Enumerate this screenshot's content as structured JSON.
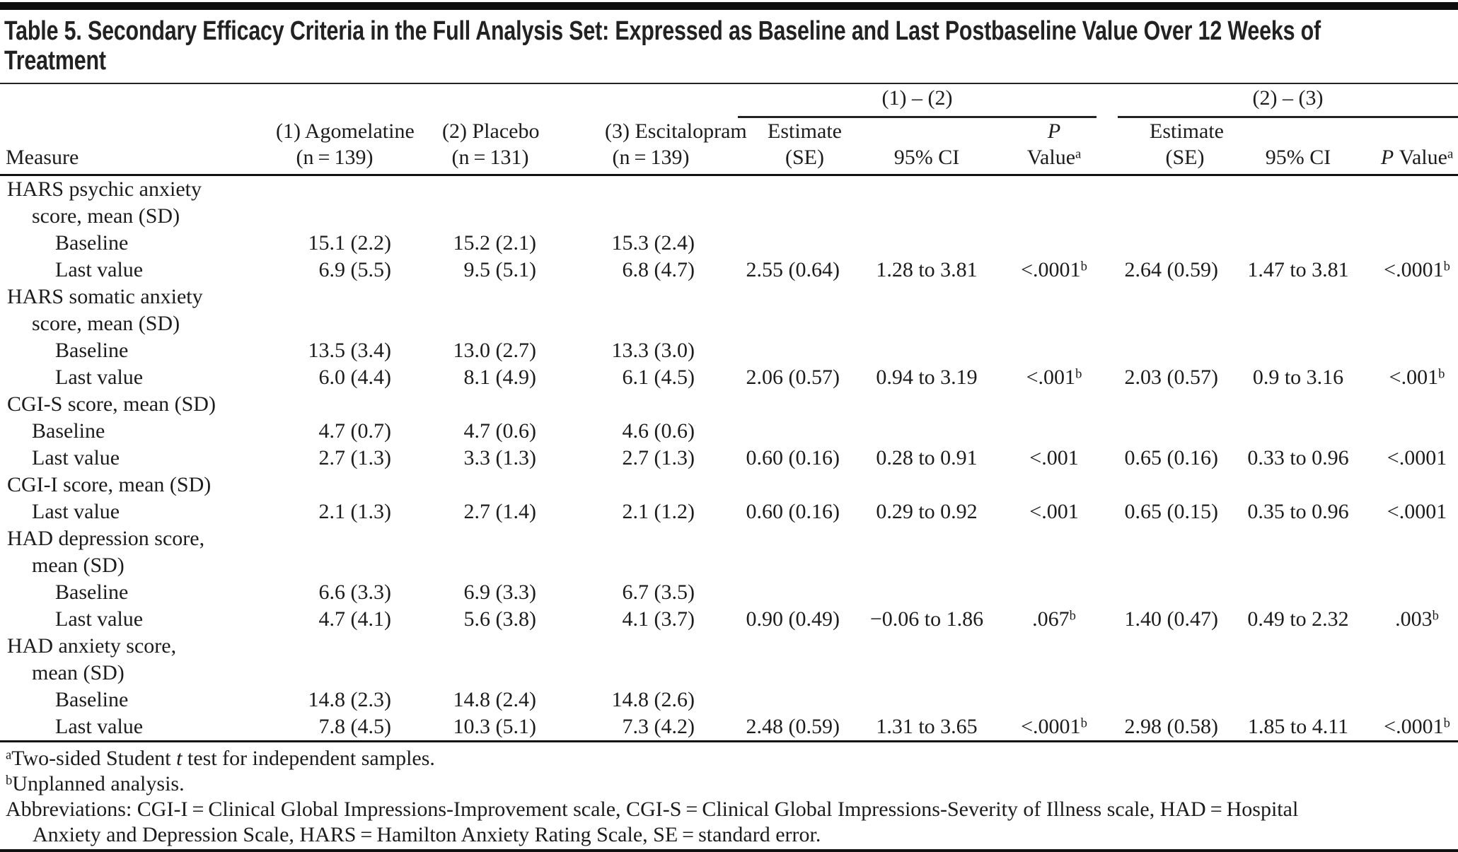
{
  "colors": {
    "background": "#ffffff",
    "text": "#1c1c1c",
    "rule": "#111111",
    "top_bar": "#0e0e0e"
  },
  "title": {
    "line1": "Table 5. Secondary Efficacy Criteria in the Full Analysis Set: Expressed as Baseline and Last Postbaseline Value Over 12 Weeks of",
    "line2": "Treatment"
  },
  "header": {
    "measure": "Measure",
    "treatments": [
      {
        "line1": "(1) Agomelatine",
        "line2": "(n = 139)"
      },
      {
        "line1": "(2) Placebo",
        "line2": "(n = 131)"
      },
      {
        "line1": "(3) Escitalopram",
        "line2": "(n = 139)"
      }
    ],
    "spanners": [
      {
        "label": "(1) – (2)"
      },
      {
        "label": "(2) – (3)"
      }
    ],
    "cols": {
      "estimate_l1": "Estimate",
      "estimate_l2": "(SE)",
      "ci": "95% CI",
      "p1_l1": "P",
      "p1_l2": "Value",
      "p2_italic": "P",
      "p2_rest": " Value",
      "p_sup": "a"
    }
  },
  "rows": [
    {
      "label": "HARS psychic anxiety",
      "indent": 0,
      "cells": []
    },
    {
      "label": "score, mean (SD)",
      "indent": 1,
      "cells": []
    },
    {
      "label": "Baseline",
      "indent": 2,
      "cells": [
        "15.1 (2.2)",
        "15.2 (2.1)",
        "15.3 (2.4)",
        "",
        "",
        "",
        "",
        "",
        ""
      ]
    },
    {
      "label": "Last value",
      "indent": 2,
      "cells": [
        "6.9 (5.5)",
        "9.5 (5.1)",
        "6.8 (4.7)",
        "2.55 (0.64)",
        "1.28 to 3.81",
        "<.0001^b",
        "2.64 (0.59)",
        "1.47 to 3.81",
        "<.0001^b"
      ]
    },
    {
      "label": "HARS somatic anxiety",
      "indent": 0,
      "cells": []
    },
    {
      "label": "score, mean (SD)",
      "indent": 1,
      "cells": []
    },
    {
      "label": "Baseline",
      "indent": 2,
      "cells": [
        "13.5 (3.4)",
        "13.0 (2.7)",
        "13.3 (3.0)",
        "",
        "",
        "",
        "",
        "",
        ""
      ]
    },
    {
      "label": "Last value",
      "indent": 2,
      "cells": [
        "6.0 (4.4)",
        "8.1 (4.9)",
        "6.1 (4.5)",
        "2.06 (0.57)",
        "0.94 to 3.19",
        "<.001^b",
        "2.03 (0.57)",
        "0.9 to 3.16",
        "<.001^b"
      ]
    },
    {
      "label": "CGI-S score, mean (SD)",
      "indent": 0,
      "cells": []
    },
    {
      "label": "Baseline",
      "indent": 1,
      "cells": [
        "4.7 (0.7)",
        "4.7 (0.6)",
        "4.6 (0.6)",
        "",
        "",
        "",
        "",
        "",
        ""
      ]
    },
    {
      "label": "Last value",
      "indent": 1,
      "cells": [
        "2.7 (1.3)",
        "3.3 (1.3)",
        "2.7 (1.3)",
        "0.60 (0.16)",
        "0.28 to 0.91",
        "<.001",
        "0.65 (0.16)",
        "0.33 to 0.96",
        "<.0001"
      ]
    },
    {
      "label": "CGI-I score, mean (SD)",
      "indent": 0,
      "cells": []
    },
    {
      "label": "Last value",
      "indent": 1,
      "cells": [
        "2.1 (1.3)",
        "2.7 (1.4)",
        "2.1 (1.2)",
        "0.60 (0.16)",
        "0.29 to 0.92",
        "<.001",
        "0.65 (0.15)",
        "0.35 to 0.96",
        "<.0001"
      ]
    },
    {
      "label": "HAD depression score,",
      "indent": 0,
      "cells": []
    },
    {
      "label": "mean (SD)",
      "indent": 1,
      "cells": []
    },
    {
      "label": "Baseline",
      "indent": 2,
      "cells": [
        "6.6 (3.3)",
        "6.9 (3.3)",
        "6.7 (3.5)",
        "",
        "",
        "",
        "",
        "",
        ""
      ]
    },
    {
      "label": "Last value",
      "indent": 2,
      "cells": [
        "4.7 (4.1)",
        "5.6 (3.8)",
        "4.1 (3.7)",
        "0.90 (0.49)",
        "−0.06 to 1.86",
        ".067^b",
        "1.40 (0.47)",
        "0.49 to 2.32",
        ".003^b"
      ]
    },
    {
      "label": "HAD anxiety score,",
      "indent": 0,
      "cells": []
    },
    {
      "label": "mean (SD)",
      "indent": 1,
      "cells": []
    },
    {
      "label": "Baseline",
      "indent": 2,
      "cells": [
        "14.8 (2.3)",
        "14.8 (2.4)",
        "14.8 (2.6)",
        "",
        "",
        "",
        "",
        "",
        ""
      ]
    },
    {
      "label": "Last value",
      "indent": 2,
      "cells": [
        "7.8 (4.5)",
        "10.3 (5.1)",
        "7.3 (4.2)",
        "2.48 (0.59)",
        "1.31 to 3.65",
        "<.0001^b",
        "2.98 (0.58)",
        "1.85 to 4.11",
        "<.0001^b"
      ]
    }
  ],
  "footnotes": {
    "a": {
      "sup": "a",
      "pre": "Two-sided Student ",
      "italic": "t",
      "post": " test for independent samples."
    },
    "b": {
      "sup": "b",
      "text": "Unplanned analysis."
    },
    "abbreviations": {
      "line1": "Abbreviations: CGI-I = Clinical Global Impressions-Improvement scale, CGI-S = Clinical Global Impressions-Severity of Illness scale, HAD = Hospital",
      "line2": "Anxiety and Depression Scale, HARS = Hamilton Anxiety Rating Scale, SE = standard error."
    }
  }
}
